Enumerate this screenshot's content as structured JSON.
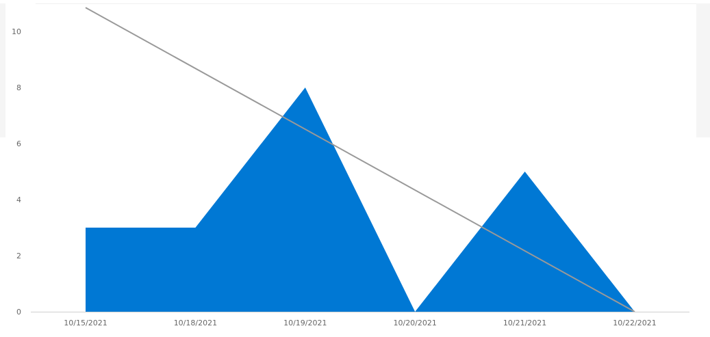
{
  "chart_data": {
    "type": "area",
    "categories": [
      "10/15/2021",
      "10/18/2021",
      "10/19/2021",
      "10/20/2021",
      "10/21/2021",
      "10/22/2021"
    ],
    "series": [
      {
        "values": [
          3,
          3,
          8,
          0,
          5,
          0
        ],
        "color": "#0078d4"
      }
    ],
    "trendline": {
      "values": [
        10.85,
        8.68,
        6.51,
        4.34,
        2.17,
        0
      ],
      "color": "#999999"
    },
    "y_ticks": [
      0,
      2,
      4,
      6,
      8,
      10
    ],
    "ylim": [
      0,
      11
    ],
    "grid": false,
    "legend": "none",
    "title": "",
    "xlabel": "",
    "ylabel": ""
  }
}
